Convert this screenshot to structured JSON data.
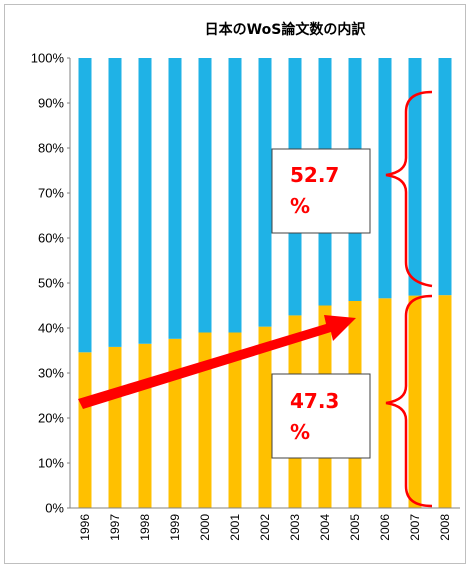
{
  "chart_data": {
    "type": "bar",
    "stacked": true,
    "percent_stacked": true,
    "title": "日本のWoS論文数の内訳",
    "xlabel": "",
    "ylabel": "",
    "ylim": [
      0,
      100
    ],
    "y_ticks": [
      "0%",
      "10%",
      "20%",
      "30%",
      "40%",
      "50%",
      "60%",
      "70%",
      "80%",
      "90%",
      "100%"
    ],
    "grid": false,
    "legend": "none",
    "categories": [
      "1996",
      "1997",
      "1998",
      "1999",
      "2000",
      "2001",
      "2002",
      "2003",
      "2004",
      "2005",
      "2006",
      "2007",
      "2008"
    ],
    "series": [
      {
        "color": "#ffc000",
        "values": [
          34.6,
          35.8,
          36.5,
          37.6,
          39.0,
          39.0,
          40.3,
          42.8,
          45.0,
          46.0,
          46.6,
          47.2,
          47.3
        ]
      },
      {
        "color": "#1fb2e6",
        "values": [
          65.4,
          64.2,
          63.5,
          62.4,
          61.0,
          61.0,
          59.7,
          57.2,
          55.0,
          54.0,
          53.4,
          52.8,
          52.7
        ]
      }
    ],
    "annotations": [
      {
        "line1": "52.7",
        "line2": "%"
      },
      {
        "line1": "47.3",
        "line2": "%"
      }
    ],
    "annotation_color": "#ff0000"
  }
}
